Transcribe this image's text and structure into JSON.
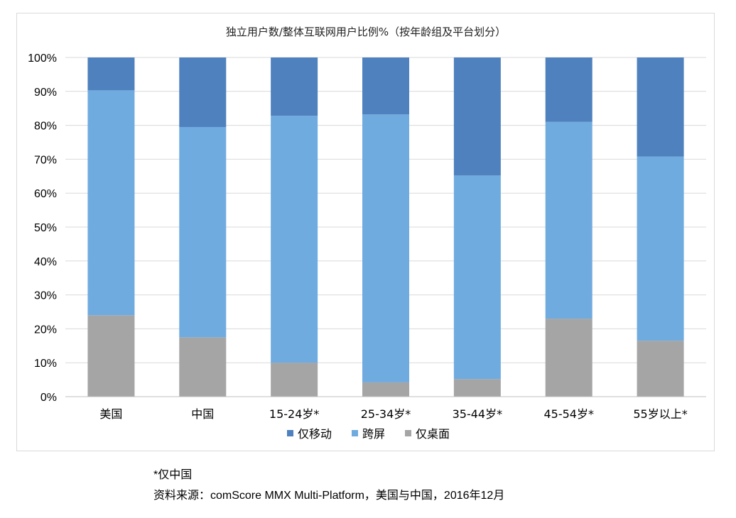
{
  "chart_data": {
    "type": "bar",
    "stacked": true,
    "title": "独立用户数/整体互联网用户比例%（按年龄组及平台划分）",
    "categories": [
      "美国",
      "中国",
      "15-24岁*",
      "25-34岁*",
      "35-44岁*",
      "45-54岁*",
      "55岁以上*"
    ],
    "series": [
      {
        "name": "仅桌面",
        "color": "#a5a5a5",
        "values": [
          24,
          17.5,
          10,
          4.2,
          5.2,
          23,
          16.5
        ]
      },
      {
        "name": "跨屏",
        "color": "#70abe0",
        "values": [
          66.3,
          62,
          72.8,
          79,
          60,
          58,
          54.3
        ]
      },
      {
        "name": "仅移动",
        "color": "#4e81bd",
        "values": [
          9.7,
          20.5,
          17.2,
          16.8,
          34.8,
          19,
          29.2
        ]
      }
    ],
    "legend_order": [
      "仅移动",
      "跨屏",
      "仅桌面"
    ],
    "ylim": [
      0,
      100
    ],
    "yticks": [
      "0%",
      "10%",
      "20%",
      "30%",
      "40%",
      "50%",
      "60%",
      "70%",
      "80%",
      "90%",
      "100%"
    ],
    "grid": true,
    "legend_position": "bottom"
  },
  "notes": {
    "asterisk": "*仅中国",
    "source": "资料来源：comScore MMX Multi-Platform，美国与中国，2016年12月"
  }
}
